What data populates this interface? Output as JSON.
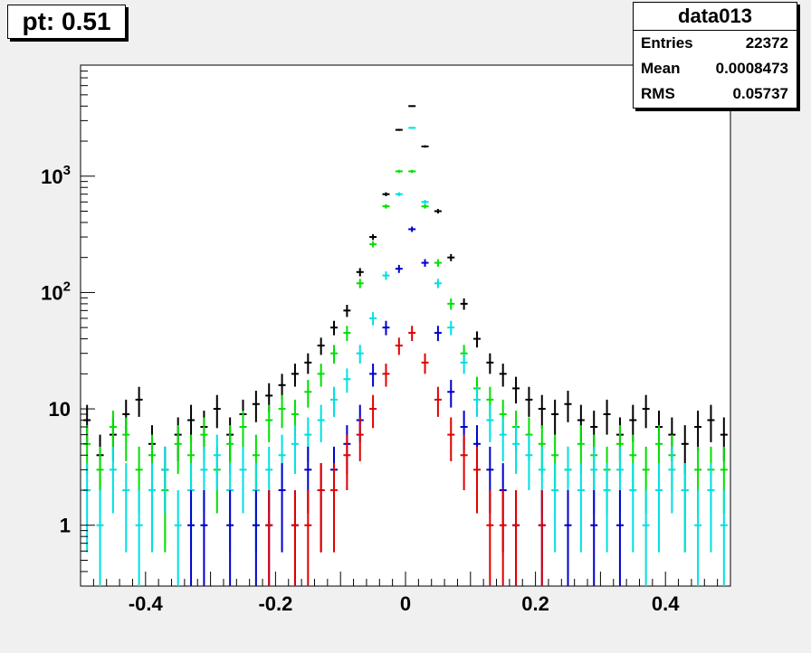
{
  "header": {
    "title": "pt: 0.51"
  },
  "stats": {
    "name": "data013",
    "rows": [
      {
        "key": "Entries",
        "value": "22372"
      },
      {
        "key": "Mean",
        "value": "0.0008473"
      },
      {
        "key": "RMS",
        "value": "0.05737"
      }
    ]
  },
  "colors": {
    "black": "#000000",
    "green": "#00e000",
    "cyan": "#00e0e0",
    "blue": "#0000cc",
    "red": "#e00000"
  },
  "chart_data": {
    "type": "scatter",
    "title": "",
    "xlabel": "",
    "ylabel": "",
    "xlim": [
      -0.5,
      0.5
    ],
    "ylim": [
      0.3,
      9000
    ],
    "yscale": "log",
    "grid": false,
    "x_ticks": [
      {
        "value": -0.4,
        "label": "-0.4"
      },
      {
        "value": -0.2,
        "label": "-0.2"
      },
      {
        "value": 0,
        "label": "0"
      },
      {
        "value": 0.2,
        "label": "0.2"
      },
      {
        "value": 0.4,
        "label": "0.4"
      }
    ],
    "y_ticks": [
      {
        "value": 1,
        "label": "1"
      },
      {
        "value": 10,
        "label": "10"
      },
      {
        "value": 100,
        "label": "10^2"
      },
      {
        "value": 1000,
        "label": "10^3"
      }
    ],
    "series": [
      {
        "color": "#000000",
        "x": [
          -0.49,
          -0.47,
          -0.45,
          -0.43,
          -0.41,
          -0.39,
          -0.37,
          -0.35,
          -0.33,
          -0.31,
          -0.29,
          -0.27,
          -0.25,
          -0.23,
          -0.21,
          -0.19,
          -0.17,
          -0.15,
          -0.13,
          -0.11,
          -0.09,
          -0.07,
          -0.05,
          -0.03,
          -0.01,
          0.01,
          0.03,
          0.05,
          0.07,
          0.09,
          0.11,
          0.13,
          0.15,
          0.17,
          0.19,
          0.21,
          0.23,
          0.25,
          0.27,
          0.29,
          0.31,
          0.33,
          0.35,
          0.37,
          0.39,
          0.41,
          0.43,
          0.45,
          0.47,
          0.49
        ],
        "y": [
          8,
          4,
          6,
          9,
          12,
          5,
          3,
          6,
          8,
          7,
          10,
          6,
          9,
          11,
          13,
          16,
          20,
          25,
          35,
          50,
          70,
          150,
          300,
          700,
          2500,
          4000,
          1800,
          500,
          200,
          80,
          40,
          25,
          20,
          15,
          12,
          10,
          9,
          11,
          8,
          7,
          9,
          6,
          8,
          10,
          7,
          6,
          5,
          7,
          8,
          6
        ]
      },
      {
        "color": "#00e000",
        "x": [
          -0.49,
          -0.47,
          -0.45,
          -0.43,
          -0.41,
          -0.39,
          -0.37,
          -0.35,
          -0.33,
          -0.31,
          -0.29,
          -0.27,
          -0.25,
          -0.23,
          -0.21,
          -0.19,
          -0.17,
          -0.15,
          -0.13,
          -0.11,
          -0.09,
          -0.07,
          -0.05,
          -0.03,
          -0.01,
          0.01,
          0.03,
          0.05,
          0.07,
          0.09,
          0.11,
          0.13,
          0.15,
          0.17,
          0.19,
          0.21,
          0.23,
          0.25,
          0.27,
          0.29,
          0.31,
          0.33,
          0.35,
          0.37,
          0.39,
          0.41,
          0.43,
          0.45,
          0.47,
          0.49
        ],
        "y": [
          5,
          3,
          7,
          6,
          3,
          4,
          2,
          5,
          4,
          6,
          3,
          5,
          7,
          4,
          8,
          10,
          9,
          14,
          20,
          30,
          45,
          120,
          260,
          550,
          1100,
          1100,
          550,
          180,
          80,
          30,
          15,
          12,
          9,
          7,
          6,
          5,
          4,
          3,
          5,
          4,
          3,
          5,
          4,
          3,
          5,
          4,
          2,
          3,
          3,
          3
        ]
      },
      {
        "color": "#00e0e0",
        "x": [
          -0.49,
          -0.47,
          -0.45,
          -0.43,
          -0.41,
          -0.39,
          -0.37,
          -0.35,
          -0.33,
          -0.31,
          -0.29,
          -0.27,
          -0.25,
          -0.23,
          -0.21,
          -0.19,
          -0.17,
          -0.15,
          -0.13,
          -0.11,
          -0.09,
          -0.07,
          -0.05,
          -0.03,
          -0.01,
          0.01,
          0.03,
          0.05,
          0.07,
          0.09,
          0.11,
          0.13,
          0.15,
          0.17,
          0.19,
          0.21,
          0.23,
          0.25,
          0.27,
          0.29,
          0.31,
          0.33,
          0.35,
          0.37,
          0.39,
          0.41,
          0.43,
          0.45,
          0.47,
          0.49
        ],
        "y": [
          2,
          1,
          3,
          2,
          1,
          2,
          3,
          1,
          2,
          3,
          4,
          2,
          3,
          2,
          3,
          4,
          5,
          6,
          8,
          12,
          18,
          30,
          60,
          140,
          700,
          2600,
          600,
          120,
          50,
          25,
          12,
          8,
          6,
          5,
          4,
          3,
          2,
          3,
          2,
          3,
          2,
          3,
          2,
          1,
          2,
          3,
          2,
          1,
          2,
          1
        ]
      },
      {
        "color": "#0000cc",
        "x": [
          -0.33,
          -0.31,
          -0.27,
          -0.23,
          -0.21,
          -0.19,
          -0.17,
          -0.15,
          -0.13,
          -0.11,
          -0.09,
          -0.07,
          -0.05,
          -0.03,
          -0.01,
          0.01,
          0.03,
          0.05,
          0.07,
          0.09,
          0.11,
          0.13,
          0.15,
          0.17,
          0.21,
          0.25,
          0.29,
          0.33
        ],
        "y": [
          1,
          1,
          1,
          1,
          1,
          2,
          1,
          3,
          2,
          3,
          5,
          8,
          20,
          50,
          160,
          350,
          180,
          45,
          14,
          7,
          5,
          3,
          2,
          1,
          1,
          1,
          1,
          1
        ]
      },
      {
        "color": "#e00000",
        "x": [
          -0.21,
          -0.17,
          -0.15,
          -0.13,
          -0.11,
          -0.09,
          -0.07,
          -0.05,
          -0.03,
          -0.01,
          0.01,
          0.03,
          0.05,
          0.07,
          0.09,
          0.11,
          0.13,
          0.15,
          0.17,
          0.21
        ],
        "y": [
          1,
          1,
          1,
          2,
          2,
          4,
          6,
          10,
          20,
          35,
          45,
          25,
          12,
          6,
          4,
          3,
          1,
          1,
          1,
          1
        ]
      }
    ]
  }
}
